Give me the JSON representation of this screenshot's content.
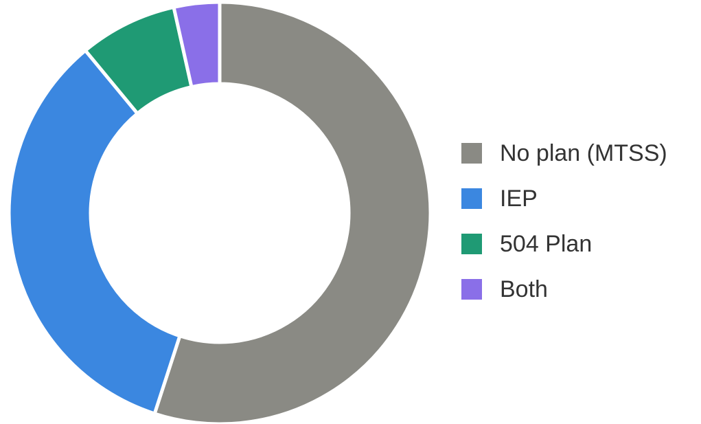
{
  "chart_data": {
    "type": "pie",
    "title": "",
    "donut": true,
    "legend_position": "right",
    "slices": [
      {
        "label": "No plan (MTSS)",
        "value": 55,
        "color": "#8a8a84"
      },
      {
        "label": "IEP",
        "value": 34,
        "color": "#3b87e0"
      },
      {
        "label": "504 Plan",
        "value": 7.5,
        "color": "#1f9a74"
      },
      {
        "label": "Both",
        "value": 3.5,
        "color": "#8a6fe8"
      }
    ]
  }
}
